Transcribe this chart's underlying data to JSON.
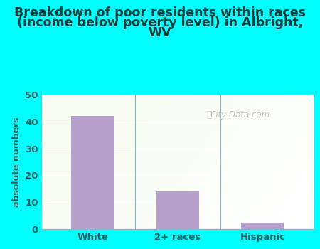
{
  "categories": [
    "White",
    "2+ races",
    "Hispanic"
  ],
  "values": [
    42,
    14,
    2.5
  ],
  "bar_color": "#b8a0cc",
  "title_line1": "Breakdown of poor residents within races",
  "title_line2": "(income below poverty level) in Albright,",
  "title_line3": "WV",
  "ylabel": "absolute numbers",
  "ylim": [
    0,
    50
  ],
  "yticks": [
    0,
    10,
    20,
    30,
    40,
    50
  ],
  "background_color": "#00ffff",
  "title_color": "#1a3a3a",
  "axis_label_color": "#2a6060",
  "tick_color": "#2a6060",
  "watermark": "City-Data.com",
  "title_fontsize": 12.5,
  "ylabel_fontsize": 9,
  "tick_fontsize": 9.5,
  "grid_color": "#d0e8d0",
  "plot_bg_color_left": "#d8eedc",
  "plot_bg_color_right": "#f0f8f0"
}
